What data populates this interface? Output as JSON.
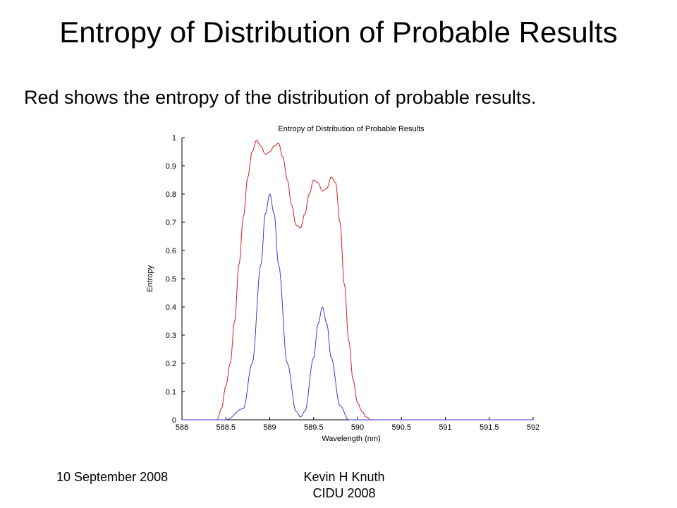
{
  "slide": {
    "title": "Entropy of Distribution of Probable Results",
    "subtitle": "Red shows the entropy of the distribution of probable results.",
    "footer_date": "10 September 2008",
    "footer_author": "Kevin H Knuth",
    "footer_venue": "CIDU 2008"
  },
  "colors": {
    "entropy_line": "#e31a1c",
    "spectrum_line": "#3a3adc",
    "axis": "#000000"
  },
  "chart_data": {
    "type": "line",
    "title": "Entropy of Distribution of Probable Results",
    "xlabel": "Wavelength (nm)",
    "ylabel": "Entropy",
    "xlim": [
      588,
      592
    ],
    "ylim": [
      0,
      1
    ],
    "xticks": [
      588,
      588.5,
      589,
      589.5,
      590,
      590.5,
      591,
      591.5,
      592
    ],
    "xtick_labels": [
      "588",
      "588.5",
      "589",
      "589.5",
      "590",
      "590.5",
      "591",
      "591.5",
      "592"
    ],
    "yticks": [
      0,
      0.1,
      0.2,
      0.3,
      0.4,
      0.5,
      0.6,
      0.7,
      0.8,
      0.9,
      1
    ],
    "ytick_labels": [
      "0",
      "0.1",
      "0.2",
      "0.3",
      "0.4",
      "0.5",
      "0.6",
      "0.7",
      "0.8",
      "0.9",
      "1"
    ],
    "grid": false,
    "series": [
      {
        "color_key": "entropy_line",
        "x": [
          588.0,
          588.4,
          588.45,
          588.5,
          588.55,
          588.6,
          588.65,
          588.7,
          588.75,
          588.8,
          588.85,
          588.9,
          588.95,
          589.0,
          589.05,
          589.1,
          589.15,
          589.2,
          589.25,
          589.3,
          589.35,
          589.4,
          589.45,
          589.5,
          589.55,
          589.6,
          589.65,
          589.7,
          589.75,
          589.8,
          589.85,
          589.9,
          589.95,
          590.0,
          590.05,
          590.1,
          590.15,
          590.2
        ],
        "y": [
          0.0,
          0.0,
          0.04,
          0.12,
          0.2,
          0.35,
          0.55,
          0.72,
          0.86,
          0.95,
          0.99,
          0.97,
          0.94,
          0.95,
          0.97,
          0.98,
          0.93,
          0.85,
          0.76,
          0.69,
          0.68,
          0.73,
          0.8,
          0.85,
          0.84,
          0.81,
          0.82,
          0.86,
          0.84,
          0.7,
          0.48,
          0.28,
          0.14,
          0.06,
          0.03,
          0.01,
          0.0,
          0.0
        ]
      },
      {
        "color_key": "spectrum_line",
        "x": [
          588.0,
          588.5,
          588.7,
          588.8,
          588.9,
          588.95,
          589.0,
          589.05,
          589.1,
          589.2,
          589.3,
          589.35,
          589.4,
          589.5,
          589.55,
          589.6,
          589.65,
          589.7,
          589.8,
          589.9,
          590.0,
          592.0
        ],
        "y": [
          0.0,
          0.0,
          0.04,
          0.2,
          0.55,
          0.73,
          0.8,
          0.73,
          0.55,
          0.2,
          0.03,
          0.01,
          0.03,
          0.22,
          0.34,
          0.4,
          0.34,
          0.22,
          0.05,
          0.0,
          0.0,
          0.0
        ]
      }
    ]
  }
}
